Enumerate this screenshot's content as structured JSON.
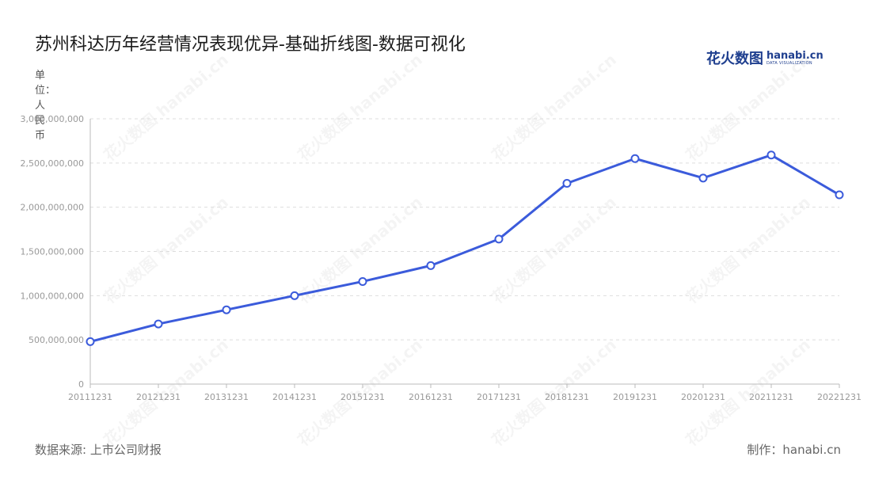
{
  "header": {
    "title": "苏州科达历年经营情况表现优异-基础折线图-数据可视化"
  },
  "logo": {
    "cn": "花火数图",
    "en": "hanabi.cn",
    "sub": "DATA VISUALIZATION"
  },
  "footer": {
    "source": "数据来源: 上市公司财报",
    "credit": "制作：hanabi.cn"
  },
  "watermark": "花火数图 hanabi.cn",
  "colors": {
    "line": "#3b5bdb",
    "grid": "#dddddd",
    "axis": "#bbbbbb",
    "tick": "#999999"
  },
  "chart_data": {
    "type": "line",
    "title": "苏州科达历年经营情况表现优异-基础折线图-数据可视化",
    "ylabel": "单位：人民币",
    "xlabel": "",
    "categories": [
      "20111231",
      "20121231",
      "20131231",
      "20141231",
      "20151231",
      "20161231",
      "20171231",
      "20181231",
      "20191231",
      "20201231",
      "20211231",
      "20221231"
    ],
    "series": [
      {
        "values": [
          480000000,
          680000000,
          840000000,
          1000000000,
          1160000000,
          1340000000,
          1640000000,
          2270000000,
          2550000000,
          2330000000,
          2590000000,
          2140000000
        ]
      }
    ],
    "ylim": [
      0,
      3000000000
    ],
    "yticks": [
      0,
      500000000,
      1000000000,
      1500000000,
      2000000000,
      2500000000,
      3000000000
    ],
    "ytick_labels": [
      "0",
      "500,000,000",
      "1,000,000,000",
      "1,500,000,000",
      "2,000,000,000",
      "2,500,000,000",
      "3,000,000,000"
    ],
    "grid": true,
    "legend": "none"
  }
}
